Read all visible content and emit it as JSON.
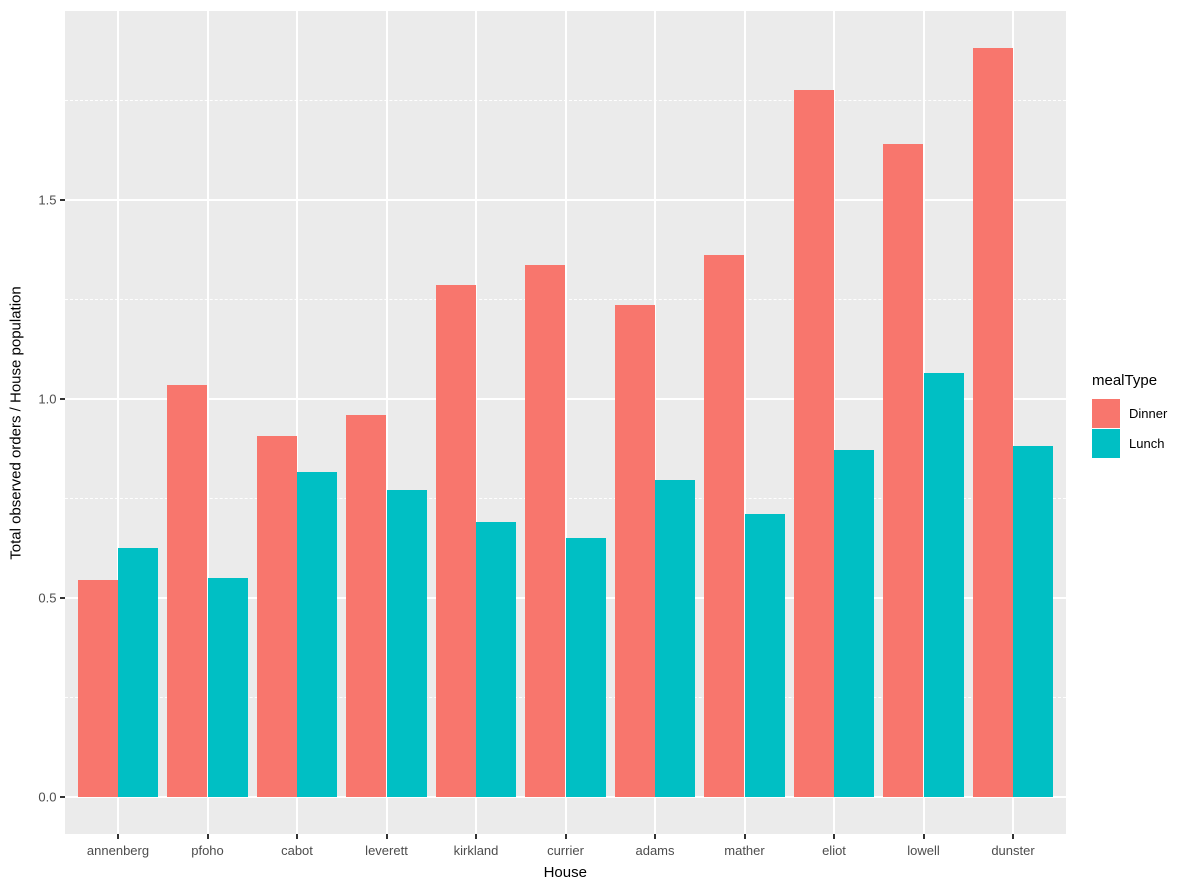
{
  "chart_data": {
    "type": "bar",
    "title": "",
    "xlabel": "House",
    "ylabel": "Total observed orders / House population",
    "categories": [
      "annenberg",
      "pfoho",
      "cabot",
      "leverett",
      "kirkland",
      "currier",
      "adams",
      "mather",
      "eliot",
      "lowell",
      "dunster"
    ],
    "series": [
      {
        "name": "Dinner",
        "color": "#F8766D",
        "values": [
          0.545,
          1.035,
          0.905,
          0.96,
          1.285,
          1.335,
          1.235,
          1.36,
          1.775,
          1.64,
          1.88
        ]
      },
      {
        "name": "Lunch",
        "color": "#00BFC4",
        "values": [
          0.625,
          0.55,
          0.815,
          0.77,
          0.69,
          0.65,
          0.795,
          0.71,
          0.87,
          1.065,
          0.88
        ]
      }
    ],
    "ylim": [
      -0.094,
      1.974
    ],
    "yticks_major": [
      0.0,
      0.5,
      1.0,
      1.5
    ],
    "ytick_labels": [
      "0.0",
      "0.5",
      "1.0",
      "1.5"
    ],
    "yticks_minor": [
      0.25,
      0.75,
      1.25,
      1.75
    ],
    "grid": "major-solid, minor-dashed, vertical-at-category-centers",
    "legend": {
      "title": "mealType",
      "position": "right",
      "entries": [
        {
          "label": "Dinner",
          "color": "#F8766D"
        },
        {
          "label": "Lunch",
          "color": "#00BFC4"
        }
      ]
    },
    "colors": {
      "panel_background": "#EBEBEB",
      "gridline": "#FFFFFF",
      "tick_label": "#4D4D4D",
      "axis_title": "#000000",
      "tick_mark": "#333333"
    }
  }
}
